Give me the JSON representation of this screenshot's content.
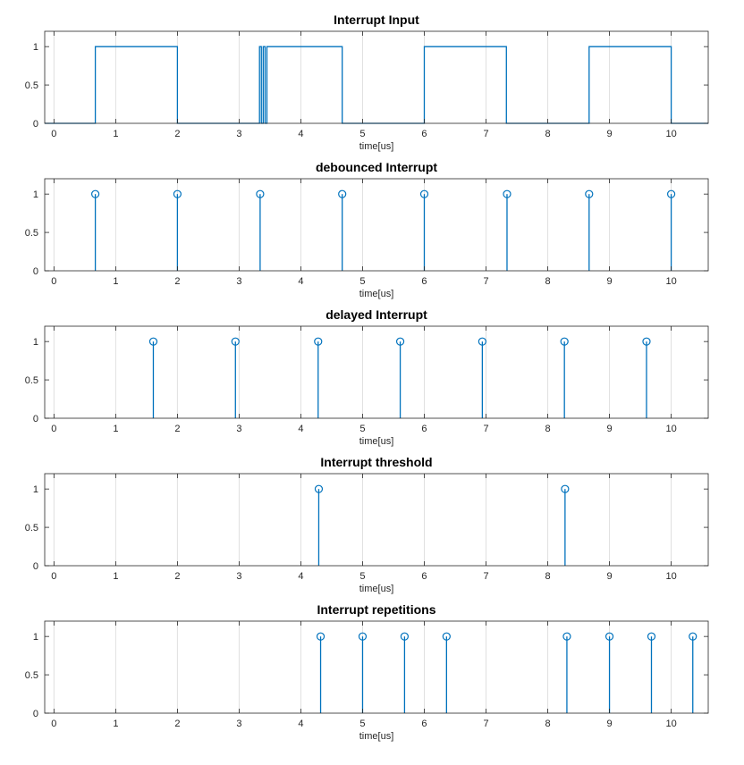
{
  "figure": {
    "background": "#ffffff",
    "series_color": "#0072bd",
    "grid_color": "#e0e0e0",
    "axes_color": "#262626"
  },
  "chart_data": [
    {
      "type": "line",
      "title": "Interrupt Input",
      "xlabel": "time[us]",
      "ylabel": "",
      "xlim": [
        -0.15,
        10.6
      ],
      "ylim": [
        0,
        1.2
      ],
      "xticks": [
        0,
        1,
        2,
        3,
        4,
        5,
        6,
        7,
        8,
        9,
        10
      ],
      "yticks": [
        0,
        0.5,
        1
      ],
      "ytick_labels": [
        "0",
        "0.5",
        "1"
      ],
      "grid": "x",
      "series": [
        {
          "x": [
            -0.15,
            0.67,
            0.67,
            2.0,
            2.0,
            3.33,
            3.33,
            3.36,
            3.36,
            3.39,
            3.39,
            3.42,
            3.42,
            3.45,
            3.45,
            4.67,
            4.67,
            6.0,
            6.0,
            7.33,
            7.33,
            8.67,
            8.67,
            10.0,
            10.0,
            10.6
          ],
          "y": [
            0,
            0,
            1,
            1,
            0,
            0,
            1,
            1,
            0,
            0,
            1,
            1,
            0,
            0,
            1,
            1,
            0,
            0,
            1,
            1,
            0,
            0,
            1,
            1,
            0,
            0
          ]
        }
      ]
    },
    {
      "type": "stem",
      "title": "debounced Interrupt",
      "xlabel": "time[us]",
      "ylabel": "",
      "xlim": [
        -0.15,
        10.6
      ],
      "ylim": [
        0,
        1.2
      ],
      "xticks": [
        0,
        1,
        2,
        3,
        4,
        5,
        6,
        7,
        8,
        9,
        10
      ],
      "yticks": [
        0,
        0.5,
        1
      ],
      "ytick_labels": [
        "0",
        "0.5",
        "1"
      ],
      "grid": "x",
      "series": [
        {
          "x": [
            0.67,
            2.0,
            3.34,
            4.67,
            6.0,
            7.34,
            8.67,
            10.0
          ],
          "y": [
            1,
            1,
            1,
            1,
            1,
            1,
            1,
            1
          ]
        }
      ]
    },
    {
      "type": "stem",
      "title": "delayed Interrupt",
      "xlabel": "time[us]",
      "ylabel": "",
      "xlim": [
        -0.15,
        10.6
      ],
      "ylim": [
        0,
        1.2
      ],
      "xticks": [
        0,
        1,
        2,
        3,
        4,
        5,
        6,
        7,
        8,
        9,
        10
      ],
      "yticks": [
        0,
        0.5,
        1
      ],
      "ytick_labels": [
        "0",
        "0.5",
        "1"
      ],
      "grid": "x",
      "series": [
        {
          "x": [
            1.61,
            2.94,
            4.28,
            5.61,
            6.94,
            8.27,
            9.6
          ],
          "y": [
            1,
            1,
            1,
            1,
            1,
            1,
            1
          ]
        }
      ]
    },
    {
      "type": "stem",
      "title": "Interrupt threshold",
      "xlabel": "time[us]",
      "ylabel": "",
      "xlim": [
        -0.15,
        10.6
      ],
      "ylim": [
        0,
        1.2
      ],
      "xticks": [
        0,
        1,
        2,
        3,
        4,
        5,
        6,
        7,
        8,
        9,
        10
      ],
      "yticks": [
        0,
        0.5,
        1
      ],
      "ytick_labels": [
        "0",
        "0.5",
        "1"
      ],
      "grid": "x",
      "series": [
        {
          "x": [
            4.29,
            8.28
          ],
          "y": [
            1,
            1
          ]
        }
      ]
    },
    {
      "type": "stem",
      "title": "Interrupt repetitions",
      "xlabel": "time[us]",
      "ylabel": "",
      "xlim": [
        -0.15,
        10.6
      ],
      "ylim": [
        0,
        1.2
      ],
      "xticks": [
        0,
        1,
        2,
        3,
        4,
        5,
        6,
        7,
        8,
        9,
        10
      ],
      "yticks": [
        0,
        0.5,
        1
      ],
      "ytick_labels": [
        "0",
        "0.5",
        "1"
      ],
      "grid": "x",
      "series": [
        {
          "x": [
            4.32,
            5.0,
            5.68,
            6.36,
            8.31,
            9.0,
            9.68,
            10.35
          ],
          "y": [
            1,
            1,
            1,
            1,
            1,
            1,
            1,
            1
          ]
        }
      ]
    }
  ]
}
